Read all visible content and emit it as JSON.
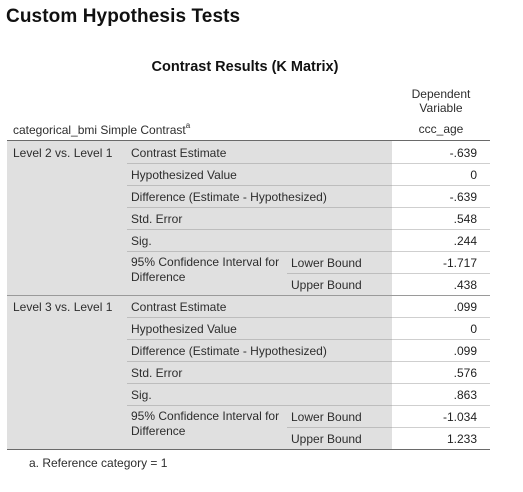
{
  "page_heading": "Custom Hypothesis Tests",
  "table": {
    "title": "Contrast Results (K Matrix)",
    "dependent_variable_header": "Dependent\nVariable",
    "dependent_variable_line1": "Dependent",
    "dependent_variable_line2": "Variable",
    "variable_name": "ccc_age",
    "row_group_header": "categorical_bmi Simple Contrast",
    "row_group_header_footnote_marker": "a",
    "groups": [
      {
        "label": "Level 2 vs. Level 1",
        "contrast_estimate_label": "Contrast Estimate",
        "contrast_estimate": "-.639",
        "hypothesized_value_label": "Hypothesized Value",
        "hypothesized_value": "0",
        "difference_label": "Difference (Estimate - Hypothesized)",
        "difference": "-.639",
        "std_error_label": "Std. Error",
        "std_error": ".548",
        "sig_label": "Sig.",
        "sig": ".244",
        "ci_label": "95% Confidence Interval for Difference",
        "lower_bound_label": "Lower Bound",
        "lower_bound": "-1.717",
        "upper_bound_label": "Upper Bound",
        "upper_bound": ".438"
      },
      {
        "label": "Level 3 vs. Level 1",
        "contrast_estimate_label": "Contrast Estimate",
        "contrast_estimate": ".099",
        "hypothesized_value_label": "Hypothesized Value",
        "hypothesized_value": "0",
        "difference_label": "Difference (Estimate - Hypothesized)",
        "difference": ".099",
        "std_error_label": "Std. Error",
        "std_error": ".576",
        "sig_label": "Sig.",
        "sig": ".863",
        "ci_label": "95% Confidence Interval for Difference",
        "lower_bound_label": "Lower Bound",
        "lower_bound": "-1.034",
        "upper_bound_label": "Upper Bound",
        "upper_bound": "1.233"
      }
    ],
    "footnote": "a. Reference category = 1"
  }
}
